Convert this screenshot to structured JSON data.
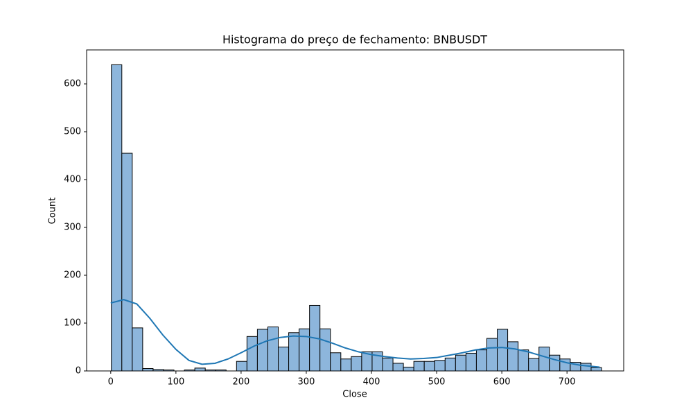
{
  "chart_data": {
    "type": "histogram",
    "title": "Histograma do preço de fechamento: BNBUSDT",
    "x_label": "Close",
    "y_label": "Count",
    "bins": [
      1,
      17,
      33,
      49,
      65,
      81,
      97,
      113,
      129,
      145,
      161,
      177,
      193,
      209,
      225,
      241,
      257,
      273,
      289,
      305,
      321,
      337,
      353,
      369,
      385,
      401,
      417,
      433,
      449,
      465,
      481,
      497,
      513,
      529,
      545,
      561,
      577,
      593,
      609,
      625,
      641,
      657,
      673,
      689,
      705,
      721,
      737,
      753
    ],
    "counts": [
      640,
      455,
      90,
      5,
      3,
      2,
      0,
      2,
      6,
      2,
      2,
      0,
      20,
      72,
      87,
      92,
      50,
      80,
      88,
      137,
      88,
      38,
      25,
      30,
      40,
      40,
      27,
      16,
      8,
      20,
      20,
      22,
      27,
      33,
      37,
      44,
      68,
      87,
      61,
      44,
      26,
      50,
      33,
      25,
      18,
      16,
      7
    ],
    "color": "#8db6dc",
    "kde": {
      "color": "#1f77b4",
      "x": [
        0,
        20,
        40,
        60,
        80,
        100,
        120,
        140,
        160,
        180,
        200,
        220,
        240,
        260,
        280,
        300,
        320,
        340,
        360,
        380,
        400,
        420,
        440,
        460,
        480,
        500,
        520,
        540,
        560,
        580,
        600,
        620,
        640,
        660,
        680,
        700,
        720,
        750
      ],
      "values": [
        142,
        149,
        140,
        110,
        75,
        45,
        22,
        14,
        16,
        25,
        38,
        52,
        63,
        70,
        73,
        72,
        67,
        58,
        48,
        40,
        34,
        30,
        27,
        25,
        26,
        28,
        33,
        38,
        44,
        48,
        49,
        46,
        40,
        32,
        24,
        17,
        12,
        8
      ]
    },
    "xlim": [
      -37,
      787
    ],
    "ylim": [
      0,
      671
    ],
    "xticks": [
      0,
      100,
      200,
      300,
      400,
      500,
      600,
      700
    ],
    "yticks": [
      0,
      100,
      200,
      300,
      400,
      500,
      600
    ]
  }
}
